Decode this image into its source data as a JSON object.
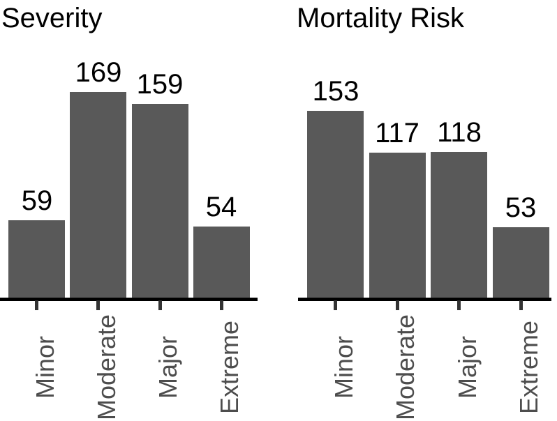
{
  "figure": {
    "background": "#ffffff",
    "bar_color": "#595959",
    "axis_color": "#000000",
    "tick_color": "#333333",
    "tick_label_color": "#4d4d4d",
    "value_label_color": "#000000"
  },
  "chart_data": [
    {
      "type": "bar",
      "title": "Severity",
      "categories": [
        "Minor",
        "Moderate",
        "Major",
        "Extreme"
      ],
      "values": [
        59,
        169,
        159,
        54
      ],
      "xlabel": "",
      "ylabel": "",
      "ylim": [
        -7,
        190
      ],
      "grid": false,
      "legend": false,
      "value_labels_shown": true,
      "tick_label_angle": 90
    },
    {
      "type": "bar",
      "title": "Mortality Risk",
      "categories": [
        "Minor",
        "Moderate",
        "Major",
        "Extreme"
      ],
      "values": [
        153,
        117,
        118,
        53
      ],
      "xlabel": "",
      "ylabel": "",
      "ylim": [
        -7,
        190
      ],
      "grid": false,
      "legend": false,
      "value_labels_shown": true,
      "tick_label_angle": 90
    }
  ]
}
